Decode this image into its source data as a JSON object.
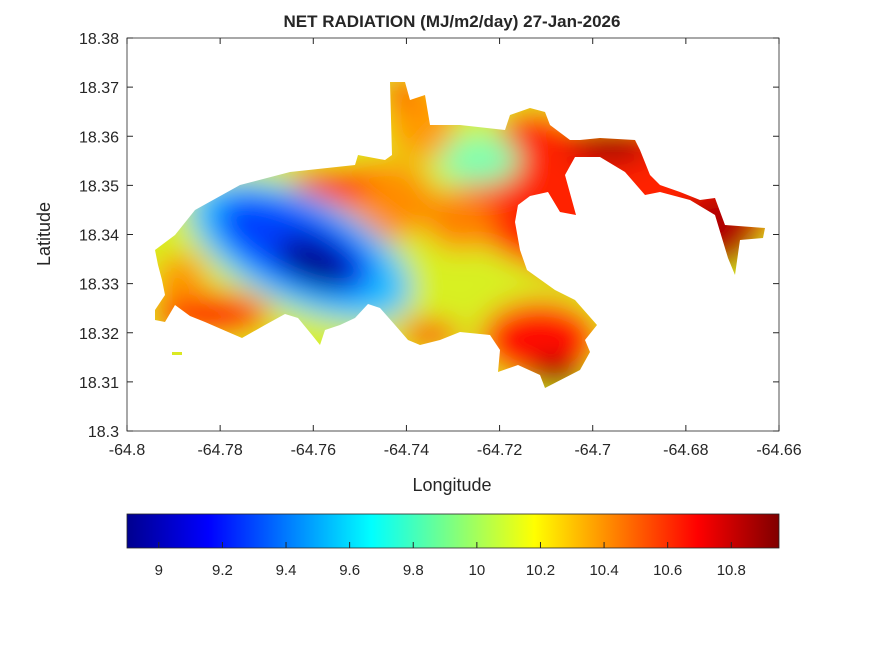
{
  "chart_data": {
    "type": "heatmap",
    "subtype": "filled-contour-map",
    "title": "NET RADIATION (MJ/m2/day) 27-Jan-2026",
    "xlabel": "Longitude",
    "ylabel": "Latitude",
    "xlim": [
      -64.8,
      -64.66
    ],
    "ylim": [
      18.3,
      18.38
    ],
    "xticks": [
      "-64.8",
      "-64.78",
      "-64.76",
      "-64.74",
      "-64.72",
      "-64.7",
      "-64.68",
      "-64.66"
    ],
    "yticks": [
      "18.3",
      "18.31",
      "18.32",
      "18.33",
      "18.34",
      "18.35",
      "18.36",
      "18.37",
      "18.38"
    ],
    "grid": false,
    "colormap": "jet",
    "colorbar": {
      "location": "bottom",
      "range": [
        8.9,
        10.95
      ],
      "ticks": [
        "9",
        "9.2",
        "9.4",
        "9.6",
        "9.8",
        "10",
        "10.2",
        "10.4",
        "10.6",
        "10.8"
      ]
    },
    "features": [
      {
        "description_value": "minimum",
        "approx_lon": -64.76,
        "approx_lat": 18.335,
        "value": 8.95
      },
      {
        "description_value": "maximum",
        "approx_lon": -64.69,
        "approx_lat": 18.359,
        "value": 10.95
      }
    ]
  }
}
